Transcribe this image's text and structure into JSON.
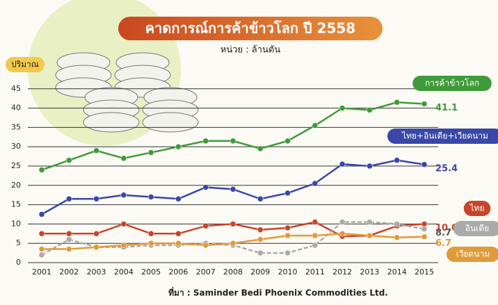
{
  "chart_data": {
    "type": "line",
    "title": "คาดการณ์การค้าข้าวโลก ปี 2558",
    "subtitle": "หน่วย : ล้านตัน",
    "y_label": "ปริมาณ",
    "source": "ที่มา : Saminder Bedi  Phoenix  Commodities Ltd.",
    "categories": [
      "2001",
      "2002",
      "2003",
      "2004",
      "2005",
      "2006",
      "2007",
      "2008",
      "2009",
      "2010",
      "2011",
      "2012",
      "2013",
      "2014",
      "2015"
    ],
    "ylim": [
      0,
      50
    ],
    "yticks": [
      0,
      5,
      10,
      15,
      20,
      25,
      30,
      35,
      40,
      45
    ],
    "grid": true,
    "series": [
      {
        "name": "การค้าข้าวโลก",
        "color": "#3f9a3a",
        "values": [
          24,
          26.5,
          29,
          27,
          28.5,
          30,
          31.5,
          31.5,
          29.5,
          31.5,
          35.5,
          40,
          39.5,
          41.5,
          41.1
        ],
        "value_labels": [
          null,
          null,
          null,
          null,
          null,
          null,
          null,
          null,
          null,
          null,
          null,
          null,
          null,
          null,
          "41.1"
        ]
      },
      {
        "name": "ไทย+อินเดีย+เวียดนาม",
        "color": "#3a47a8",
        "values": [
          12.5,
          16.5,
          16.5,
          17.5,
          17,
          16.5,
          19.5,
          19,
          16.5,
          18,
          20.5,
          25.5,
          25,
          26.5,
          25.4
        ],
        "value_labels": [
          null,
          null,
          null,
          null,
          null,
          null,
          null,
          null,
          null,
          null,
          null,
          null,
          null,
          null,
          "25.4"
        ]
      },
      {
        "name": "ไทย",
        "color": "#c8442a",
        "values": [
          7.5,
          7.5,
          7.5,
          10,
          7.5,
          7.5,
          9.5,
          10,
          8.5,
          9,
          10.5,
          6.8,
          7,
          9.5,
          10.0
        ],
        "value_labels": [
          null,
          null,
          null,
          null,
          null,
          null,
          null,
          null,
          null,
          null,
          null,
          null,
          null,
          null,
          "10.0"
        ]
      },
      {
        "name": "อินเดีย",
        "color": "#aaaaaa",
        "values": [
          2,
          6,
          4,
          4,
          4.5,
          4.5,
          5,
          4.5,
          2.5,
          2.5,
          4.5,
          10.5,
          10.5,
          10,
          8.7
        ],
        "value_labels": [
          null,
          null,
          null,
          null,
          null,
          null,
          null,
          null,
          null,
          null,
          null,
          null,
          null,
          null,
          "8.7"
        ]
      },
      {
        "name": "เวียดนาม",
        "color": "#e09a3a",
        "values": [
          3.5,
          3.5,
          4,
          4.5,
          5,
          5,
          4.5,
          5,
          6,
          7,
          7,
          7.5,
          7,
          6.5,
          6.7
        ],
        "value_labels": [
          null,
          null,
          null,
          null,
          null,
          null,
          null,
          null,
          null,
          null,
          null,
          null,
          null,
          null,
          "6.7"
        ]
      }
    ]
  }
}
